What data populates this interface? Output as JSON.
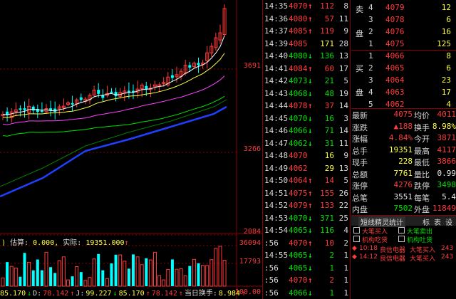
{
  "price_axis": [
    "3691",
    "3266",
    "2084"
  ],
  "volume_axis": [
    "36094",
    "17793",
    "100.00"
  ],
  "volume_info": {
    "label_est": "估算:",
    "est_value": "0.000,",
    "label_actual": "实际:",
    "actual_value": "19351.000",
    "arrow": "↑"
  },
  "indicator_bar": [
    {
      "text": "85.170",
      "color": "yellow"
    },
    {
      "text": "↓",
      "color": "green"
    },
    {
      "text": "D:",
      "color": "white"
    },
    {
      "text": "78.142",
      "color": "red"
    },
    {
      "text": "↑",
      "color": "red"
    },
    {
      "text": "J:",
      "color": "white"
    },
    {
      "text": "99.227",
      "color": "yellow"
    },
    {
      "text": "↓",
      "color": "green"
    },
    {
      "text": "85.170",
      "color": "yellow"
    },
    {
      "text": "↑",
      "color": "red"
    },
    {
      "text": "78.142",
      "color": "red"
    },
    {
      "text": "↑",
      "color": "red"
    },
    {
      "text": "当日换手:",
      "color": "white"
    },
    {
      "text": "8.984",
      "color": "yellow"
    },
    {
      "text": "↑",
      "color": "red"
    }
  ],
  "ticks": [
    {
      "time": "14:35",
      "price": "4070",
      "dir": "up",
      "vol": "112",
      "vol_color": "red",
      "num": "8"
    },
    {
      "time": "14:36",
      "price": "4080",
      "dir": "up",
      "vol": "57",
      "vol_color": "red",
      "num": "11"
    },
    {
      "time": "14:37",
      "price": "4085",
      "dir": "up",
      "vol": "119",
      "vol_color": "red",
      "num": "9"
    },
    {
      "time": "14:39",
      "price": "4085",
      "dir": "",
      "vol": "171",
      "vol_color": "yellow",
      "num": "28"
    },
    {
      "time": "14:40",
      "price": "4080",
      "dir": "dn",
      "vol": "136",
      "vol_color": "green",
      "num": "13"
    },
    {
      "time": "14:41",
      "price": "4084",
      "dir": "up",
      "vol": "60",
      "vol_color": "red",
      "num": "17"
    },
    {
      "time": "14:42",
      "price": "4073",
      "dir": "dn",
      "vol": "21",
      "vol_color": "green",
      "num": "5"
    },
    {
      "time": "14:43",
      "price": "4068",
      "dir": "dn",
      "vol": "48",
      "vol_color": "green",
      "num": "19"
    },
    {
      "time": "14:44",
      "price": "4078",
      "dir": "up",
      "vol": "37",
      "vol_color": "red",
      "num": "14"
    },
    {
      "time": "14:45",
      "price": "4070",
      "dir": "dn",
      "vol": "16",
      "vol_color": "green",
      "num": "3"
    },
    {
      "time": "14:46",
      "price": "4066",
      "dir": "dn",
      "vol": "71",
      "vol_color": "green",
      "num": "14"
    },
    {
      "time": "14:47",
      "price": "4062",
      "dir": "dn",
      "vol": "31",
      "vol_color": "green",
      "num": "11"
    },
    {
      "time": "14:48",
      "price": "4070",
      "dir": "",
      "vol": "16",
      "vol_color": "yellow",
      "num": "9"
    },
    {
      "time": "14:49",
      "price": "4062",
      "dir": "",
      "vol": "29",
      "vol_color": "yellow",
      "num": "13"
    },
    {
      "time": "14:50",
      "price": "4064",
      "dir": "up",
      "vol": "14",
      "vol_color": "red",
      "num": "5"
    },
    {
      "time": "14:51",
      "price": "4075",
      "dir": "up",
      "vol": "155",
      "vol_color": "red",
      "num": "26"
    },
    {
      "time": "14:52",
      "price": "4079",
      "dir": "up",
      "vol": "133",
      "vol_color": "red",
      "num": "22"
    },
    {
      "time": "14:53",
      "price": "4070",
      "dir": "dn",
      "vol": "371",
      "vol_color": "green",
      "num": "25"
    },
    {
      "time": "14:54",
      "price": "4065",
      "dir": "dn",
      "vol": "116",
      "vol_color": "green",
      "num": "4"
    },
    {
      "time": ":56",
      "price": "4070",
      "dir": "up",
      "vol": "10",
      "vol_color": "red",
      "num": "2"
    },
    {
      "time": "14:55",
      "price": "4065",
      "dir": "dn",
      "vol": "2",
      "vol_color": "green",
      "num": "1"
    },
    {
      "time": ":56",
      "price": "4065",
      "dir": "dn",
      "vol": "1",
      "vol_color": "green",
      "num": "1"
    },
    {
      "time": ":56",
      "price": "4070",
      "dir": "up",
      "vol": "2",
      "vol_color": "red",
      "num": "1"
    },
    {
      "time": ":56",
      "price": "4066",
      "dir": "dn",
      "vol": "1",
      "vol_color": "green",
      "num": "1"
    }
  ],
  "sell_side_label": [
    "卖",
    "盘"
  ],
  "buy_side_label": [
    "买",
    "盘"
  ],
  "asks": [
    {
      "lvl": "4",
      "price": "4079",
      "vol": "12"
    },
    {
      "lvl": "3",
      "price": "4078",
      "vol": "6"
    },
    {
      "lvl": "2",
      "price": "4076",
      "vol": "16"
    },
    {
      "lvl": "1",
      "price": "4075",
      "vol": "125"
    }
  ],
  "bids": [
    {
      "lvl": "1",
      "price": "4066",
      "vol": "8"
    },
    {
      "lvl": "2",
      "price": "4065",
      "vol": "6"
    },
    {
      "lvl": "3",
      "price": "4064",
      "vol": "23"
    },
    {
      "lvl": "4",
      "price": "4063",
      "vol": "17"
    },
    {
      "lvl": "5",
      "price": "4062",
      "vol": "4"
    }
  ],
  "stats": [
    {
      "l1": "最新",
      "v1": "4075",
      "c1": "red",
      "l2": "均价",
      "v2": "4011",
      "c2": "red"
    },
    {
      "l1": "涨跌",
      "v1": "▲188",
      "c1": "red",
      "l2": "换手",
      "v2": "8.98%",
      "c2": "yellow"
    },
    {
      "l1": "涨幅",
      "v1": "4.84%",
      "c1": "red",
      "l2": "今开",
      "v2": "3871",
      "c2": "red"
    },
    {
      "l1": "总手",
      "v1": "19351",
      "c1": "yellow",
      "l2": "最高",
      "v2": "4117",
      "c2": "red"
    },
    {
      "l1": "现手",
      "v1": "228",
      "c1": "yellow",
      "l2": "最低",
      "v2": "3866",
      "c2": "red"
    },
    {
      "l1": "总额",
      "v1": "7761",
      "c1": "yellow",
      "l2": "量比",
      "v2": "0.99",
      "c2": "white"
    },
    {
      "l1": "涨停",
      "v1": "4276",
      "c1": "red",
      "l2": "跌停",
      "v2": "3498",
      "c2": "green"
    },
    {
      "l1": "总笔",
      "v1": "3551",
      "c1": "white",
      "l2": "每笔",
      "v2": "5.4",
      "c2": "white"
    },
    {
      "l1": "内盘",
      "v1": "7502",
      "c1": "green",
      "l2": "外盘",
      "v2": "11849",
      "c2": "red"
    }
  ],
  "tabs": {
    "active": "短线精灵统计",
    "t1": "标",
    "t2": "表",
    "t3": "设"
  },
  "checkboxes": [
    {
      "left": "大笔买入",
      "right": "大笔卖出"
    },
    {
      "left": "机构吃货",
      "right": "机构吐货"
    }
  ],
  "alerts": [
    {
      "time": "10:18",
      "stock": "良信电器",
      "event": "大笔买入",
      "value": "243"
    },
    {
      "time": "14:12",
      "stock": "良信电器",
      "event": "大笔买入",
      "value": "243"
    }
  ],
  "chart_data": {
    "type": "candlestick",
    "price_ticks": [
      3691,
      3266,
      2084
    ],
    "volume_ticks": [
      36094,
      17793
    ],
    "grid": true
  }
}
